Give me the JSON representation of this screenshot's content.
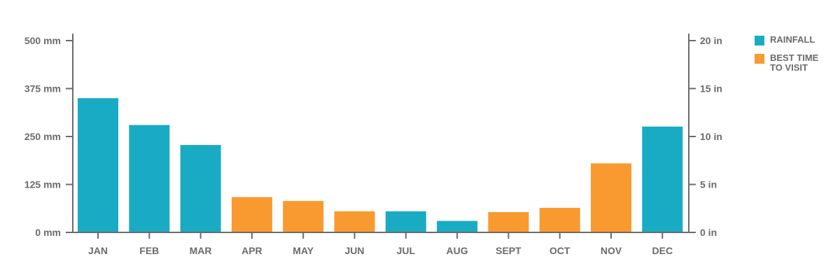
{
  "chart_data": {
    "type": "bar",
    "categories": [
      "JAN",
      "FEB",
      "MAR",
      "APR",
      "MAY",
      "JUN",
      "JUL",
      "AUG",
      "SEPT",
      "OCT",
      "NOV",
      "DEC"
    ],
    "values": [
      350,
      280,
      228,
      92,
      82,
      55,
      55,
      30,
      53,
      64,
      180,
      276
    ],
    "bar_categories": [
      "rainfall",
      "rainfall",
      "rainfall",
      "best",
      "best",
      "best",
      "rainfall",
      "rainfall",
      "best",
      "best",
      "best",
      "rainfall"
    ],
    "y_left": {
      "ticks": [
        0,
        125,
        250,
        375,
        500
      ],
      "tick_labels": [
        "0 mm",
        "125 mm",
        "250 mm",
        "375 mm",
        "500 mm"
      ],
      "range": [
        0,
        500
      ]
    },
    "y_right": {
      "ticks": [
        0,
        5,
        10,
        15,
        20
      ],
      "tick_labels": [
        "0 in",
        "5 in",
        "10 in",
        "15 in",
        "20 in"
      ],
      "range": [
        0,
        20
      ]
    },
    "legend": {
      "placement": "right",
      "items": [
        {
          "key": "rainfall",
          "label": "RAINFALL",
          "color": "#1aabc4"
        },
        {
          "key": "best",
          "label": "BEST TIME\nTO VISIT",
          "color": "#f99a30"
        }
      ]
    },
    "grid": false
  }
}
